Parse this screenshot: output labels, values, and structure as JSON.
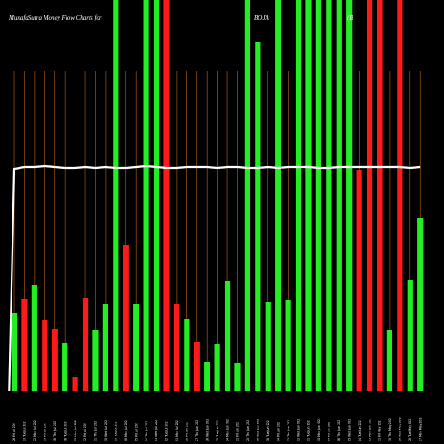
{
  "chart_data": {
    "type": "bar",
    "title_left": "MunafaSutra  Money  Flow  Charts for",
    "title_mid": "BOJA",
    "title_right": "(B",
    "categories": [
      "Fri 26 Jul 2024",
      "Tue 23 Jul 2024",
      "Mon 22 Jul 2024",
      "Fri 19 Jul 2024",
      "Thu 18 Jul 2024",
      "Tue 16 Jul 2024",
      "Mon 15 Jul 2024",
      "Fri 12 Jul 2024",
      "Thu 11 Jul 2024",
      "Wed 10 Jul 2024",
      "Tue 09 Jul 2024",
      "Mon 08 Jul 2024",
      "Fri 05 Jul 2024",
      "Thu 04 Jul 2024",
      "Wed 03 Jul 2024",
      "Tue 02 Jul 2024",
      "Mon 01 Jul 2024",
      "Fri 28 Jun 2024",
      "Thu 27 Jun 2024",
      "Wed 26 Jun 2024",
      "Tue 25 Jun 2024",
      "Mon 24 Jun 2024",
      "Fri 21 Jun 2024",
      "Thu 20 Jun 2024",
      "Wed 19 Jun 2024",
      "Tue 18 Jun 2024",
      "Fri 14 Jun 2024",
      "Thu 13 Jun 2024",
      "Wed 12 Jun 2024",
      "Tue 11 Jun 2024",
      "Mon 10 Jun 2024",
      "Fri 07 Jun 2024",
      "Thu 06 Jun 2024",
      "Wed 05 Jun 2024",
      "Tue 04 Jun 2024",
      "Mon 03 Jun 2024",
      "Fri 31 May 2024",
      "Thu 30 May 2024",
      "Wed 29 May 2024",
      "Tue 28 May 2024",
      "Mon 27 May 2024"
    ],
    "tick_labels": [
      "26 Fri Jul 202",
      "23 Tue Jul 202",
      "22 Mon Jul 202",
      "19 Fri Jul 202",
      "18 Thu Jul 202",
      "16 Tue Jul 202",
      "15 Mon Jul 202",
      "12 Fri Jul 202",
      "11 Thu Jul 202",
      "10 Wed Jul 202",
      "09 Tue Jul 202",
      "08 Mon Jul 202",
      "05 Fri Jul 202",
      "04 Thu Jul 202",
      "03 Wed Jul 202",
      "02 Tue Jul 202",
      "01 Mon Jul 202",
      "28 Fri Jun 202",
      "27 Thu Jun 202",
      "26 Wed Jun 202",
      "25 Tue Jun 202",
      "24 Mon Jun 202",
      "21 Fri Jun 202",
      "20 Thu Jun 202",
      "19 Wed Jun 202",
      "18 Tue Jun 202",
      "14 Fri Jun 202",
      "13 Thu Jun 202",
      "12 Wed Jun 202",
      "11 Tue Jun 202",
      "10 Mon Jun 202",
      "07 Fri Jun 202",
      "06 Thu Jun 202",
      "05 Wed Jun 202",
      "04 Tue Jun 202",
      "03 Mon Jun 202",
      "31 Fri May 202",
      "30 Thu May 202",
      "29 Wed May 202",
      "28 Tue May 202",
      "27 Mon May 202"
    ],
    "values": [
      87,
      103,
      119,
      80,
      69,
      54,
      15,
      104,
      68,
      98,
      440,
      164,
      98,
      440,
      440,
      440,
      98,
      81,
      55,
      32,
      53,
      124,
      31,
      440,
      393,
      100,
      440,
      102,
      440,
      440,
      440,
      440,
      440,
      440,
      249,
      440,
      440,
      68,
      440,
      125,
      195
    ],
    "colors": [
      "green",
      "red",
      "green",
      "red",
      "red",
      "green",
      "red",
      "red",
      "green",
      "green",
      "green",
      "red",
      "green",
      "green",
      "green",
      "red",
      "red",
      "green",
      "red",
      "green",
      "green",
      "green",
      "green",
      "green",
      "green",
      "green",
      "green",
      "green",
      "green",
      "green",
      "green",
      "green",
      "green",
      "green",
      "red",
      "red",
      "red",
      "green",
      "red",
      "green",
      "green"
    ],
    "line": [
      250,
      252,
      252,
      253,
      252,
      251,
      251,
      252,
      251,
      252,
      251,
      251,
      252,
      253,
      252,
      251,
      251,
      252,
      252,
      252,
      251,
      252,
      252,
      251,
      251,
      252,
      251,
      252,
      252,
      252,
      251,
      251,
      252,
      252,
      252,
      252,
      252,
      252,
      252,
      251,
      252
    ],
    "line_start": 0,
    "ylim": [
      0,
      440
    ],
    "line_ylim": [
      0,
      440
    ],
    "series_colors": {
      "green": "#22ee22",
      "red": "#ff1a1a",
      "line": "#ffffff",
      "grid": "#b8641a",
      "background": "#000000"
    }
  }
}
